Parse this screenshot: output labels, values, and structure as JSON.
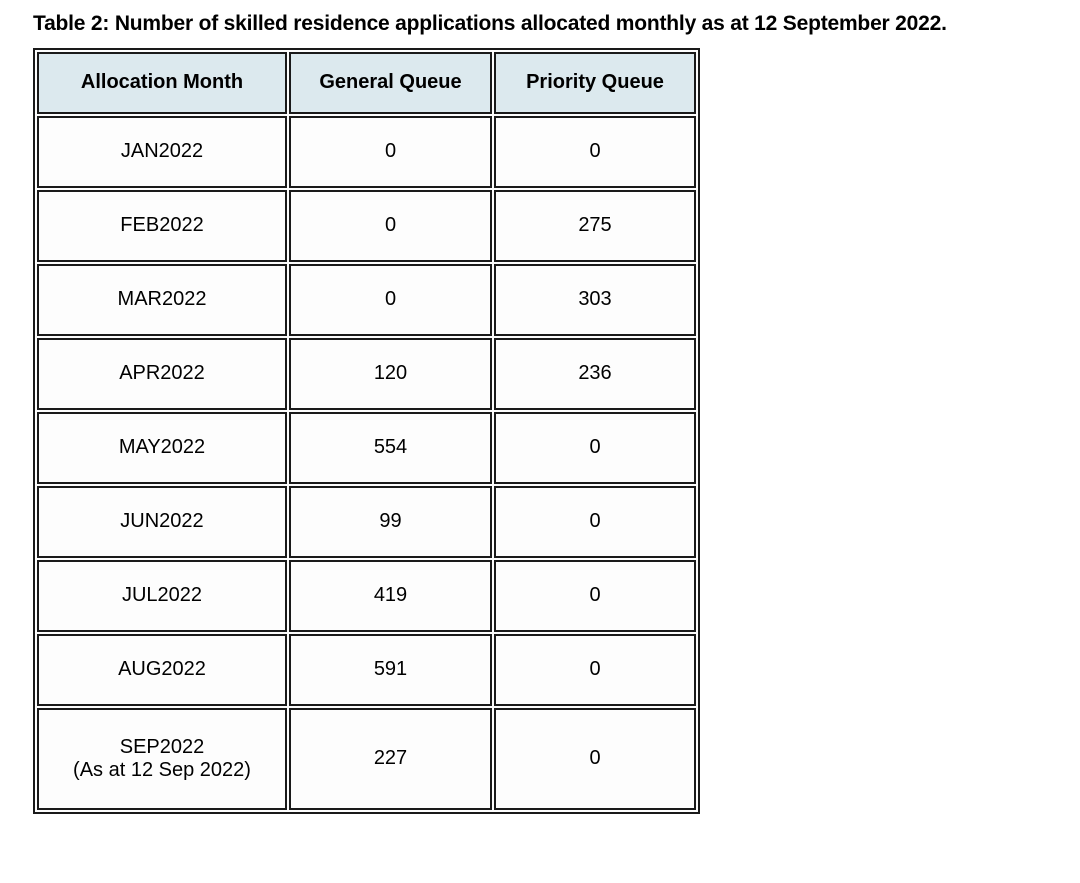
{
  "document": {
    "title": "Table 2: Number of skilled residence applications allocated monthly as at 12 September 2022."
  },
  "table": {
    "headers": {
      "month": "Allocation Month",
      "general": "General Queue",
      "priority": "Priority Queue"
    },
    "rows": [
      {
        "month": "JAN2022",
        "general": "0",
        "priority": "0"
      },
      {
        "month": "FEB2022",
        "general": "0",
        "priority": "275"
      },
      {
        "month": "MAR2022",
        "general": "0",
        "priority": "303"
      },
      {
        "month": "APR2022",
        "general": "120",
        "priority": "236"
      },
      {
        "month": "MAY2022",
        "general": "554",
        "priority": "0"
      },
      {
        "month": "JUN2022",
        "general": "99",
        "priority": "0"
      },
      {
        "month": "JUL2022",
        "general": "419",
        "priority": "0"
      },
      {
        "month": "AUG2022",
        "general": "591",
        "priority": "0"
      },
      {
        "month": "SEP2022",
        "month_note": "(As at 12 Sep 2022)",
        "general": "227",
        "priority": "0"
      }
    ],
    "styles": {
      "header_bg": "#dce9ee",
      "border_color": "#1a1a1a",
      "text_color": "#000000"
    }
  }
}
